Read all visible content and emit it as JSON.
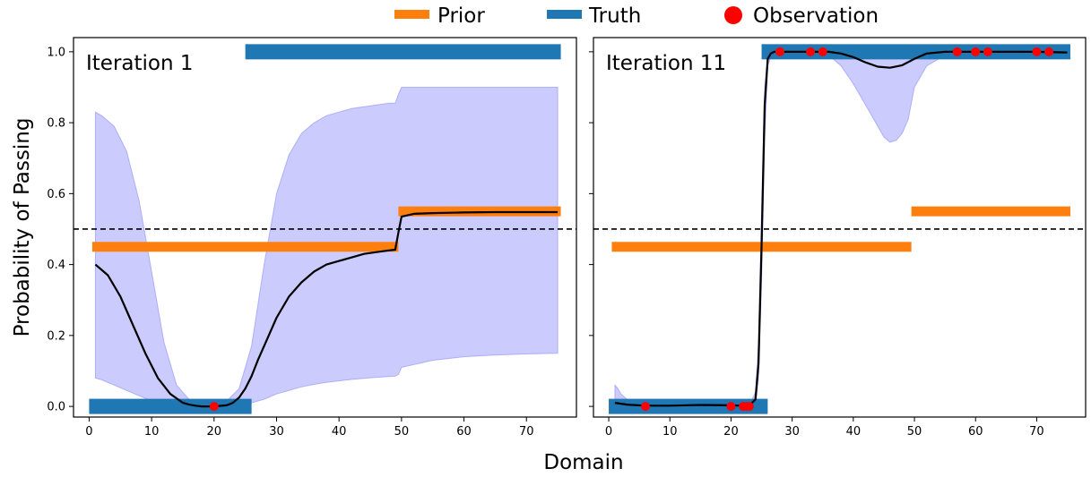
{
  "chart_data": {
    "type": "line",
    "ylabel": "Probability of Passing",
    "xlabel": "Domain",
    "xlim": [
      -2.5,
      78
    ],
    "ylim": [
      -0.03,
      1.04
    ],
    "xticks": [
      0,
      10,
      20,
      30,
      40,
      50,
      60,
      70
    ],
    "yticks": [
      0.0,
      0.2,
      0.4,
      0.6,
      0.8,
      1.0
    ],
    "threshold": 0.5,
    "legend": {
      "position": "top-center",
      "entries": [
        {
          "label": "Prior",
          "color": "#ff7f0e",
          "marker": "bar"
        },
        {
          "label": "Truth",
          "color": "#1f77b4",
          "marker": "bar"
        },
        {
          "label": "Observation",
          "color": "#ff0000",
          "marker": "dot"
        }
      ]
    },
    "panels": [
      {
        "title": "Iteration 1",
        "prior": [
          {
            "x0": 0.5,
            "x1": 49.5,
            "y": 0.45
          },
          {
            "x0": 49.5,
            "x1": 75.5,
            "y": 0.55
          }
        ],
        "truth": [
          {
            "x0": 0,
            "x1": 26,
            "y": 0.0
          },
          {
            "x0": 25,
            "x1": 75.5,
            "y": 1.0
          }
        ],
        "observations": [
          {
            "x": 20,
            "y": 0.0
          }
        ],
        "mean": {
          "x": [
            1,
            3,
            5,
            7,
            9,
            11,
            13,
            15,
            16,
            17,
            18,
            20,
            22,
            23,
            24,
            25,
            26,
            27,
            28,
            30,
            32,
            34,
            36,
            38,
            40,
            42,
            44,
            46,
            48,
            49,
            49.5,
            50,
            52,
            55,
            60,
            65,
            70,
            75
          ],
          "y": [
            0.4,
            0.37,
            0.31,
            0.23,
            0.15,
            0.08,
            0.035,
            0.01,
            0.005,
            0.002,
            0.0,
            0.0,
            0.003,
            0.01,
            0.025,
            0.05,
            0.085,
            0.13,
            0.17,
            0.25,
            0.31,
            0.35,
            0.38,
            0.4,
            0.41,
            0.42,
            0.43,
            0.435,
            0.44,
            0.442,
            0.49,
            0.535,
            0.543,
            0.545,
            0.547,
            0.548,
            0.548,
            0.548
          ]
        },
        "band": {
          "x": [
            1,
            2,
            4,
            6,
            8,
            10,
            12,
            14,
            16,
            18,
            20,
            22,
            24,
            26,
            28,
            30,
            32,
            34,
            36,
            38,
            40,
            42,
            44,
            46,
            48,
            49,
            49.5,
            50,
            55,
            60,
            65,
            70,
            75
          ],
          "upper": [
            0.83,
            0.82,
            0.79,
            0.72,
            0.58,
            0.38,
            0.18,
            0.06,
            0.02,
            0.01,
            0.01,
            0.015,
            0.05,
            0.17,
            0.4,
            0.6,
            0.71,
            0.77,
            0.8,
            0.82,
            0.83,
            0.84,
            0.845,
            0.85,
            0.855,
            0.855,
            0.88,
            0.9,
            0.9,
            0.9,
            0.9,
            0.9,
            0.9
          ],
          "lower": [
            0.08,
            0.075,
            0.06,
            0.045,
            0.03,
            0.015,
            0.005,
            0.0,
            0.0,
            0.0,
            0.0,
            0.0,
            0.003,
            0.01,
            0.02,
            0.035,
            0.045,
            0.055,
            0.062,
            0.068,
            0.072,
            0.076,
            0.079,
            0.082,
            0.084,
            0.085,
            0.09,
            0.11,
            0.13,
            0.14,
            0.145,
            0.148,
            0.15
          ]
        }
      },
      {
        "title": "Iteration 11",
        "prior": [
          {
            "x0": 0.5,
            "x1": 49.5,
            "y": 0.45
          },
          {
            "x0": 49.5,
            "x1": 75.5,
            "y": 0.55
          }
        ],
        "truth": [
          {
            "x0": 0,
            "x1": 26,
            "y": 0.0
          },
          {
            "x0": 25,
            "x1": 75.5,
            "y": 1.0
          }
        ],
        "observations": [
          {
            "x": 6,
            "y": 0.0
          },
          {
            "x": 20,
            "y": 0.0
          },
          {
            "x": 22,
            "y": 0.0
          },
          {
            "x": 22.5,
            "y": 0.0
          },
          {
            "x": 23,
            "y": 0.0
          },
          {
            "x": 28,
            "y": 1.0
          },
          {
            "x": 33,
            "y": 1.0
          },
          {
            "x": 35,
            "y": 1.0
          },
          {
            "x": 57,
            "y": 1.0
          },
          {
            "x": 60,
            "y": 1.0
          },
          {
            "x": 62,
            "y": 1.0
          },
          {
            "x": 70,
            "y": 1.0
          },
          {
            "x": 72,
            "y": 1.0
          }
        ],
        "mean": {
          "x": [
            1,
            3,
            6,
            10,
            15,
            20,
            22,
            23,
            24,
            24.5,
            25,
            25.5,
            26,
            26.5,
            27,
            28,
            30,
            33,
            36,
            38,
            40,
            42,
            44,
            46,
            48,
            50,
            52,
            55,
            57,
            60,
            65,
            70,
            75
          ],
          "y": [
            0.01,
            0.005,
            0.002,
            0.002,
            0.004,
            0.003,
            0.002,
            0.002,
            0.02,
            0.12,
            0.45,
            0.85,
            0.98,
            0.995,
            1.0,
            1.0,
            1.0,
            1.0,
            1.0,
            0.995,
            0.985,
            0.97,
            0.958,
            0.955,
            0.962,
            0.98,
            0.995,
            1.0,
            1.0,
            1.0,
            1.0,
            1.0,
            0.998
          ]
        },
        "band": {
          "x": [
            1,
            1.5,
            2,
            3,
            4,
            6,
            10,
            15,
            20,
            22,
            23,
            24,
            24.5,
            25,
            25.5,
            26,
            26.5,
            27,
            28,
            30,
            33,
            36,
            38,
            40,
            42,
            44,
            45,
            46,
            47,
            48,
            49,
            50,
            52,
            55,
            60,
            65,
            70,
            75
          ],
          "upper": [
            0.06,
            0.05,
            0.035,
            0.02,
            0.01,
            0.003,
            0.004,
            0.006,
            0.005,
            0.004,
            0.004,
            0.04,
            0.18,
            0.55,
            0.9,
            0.99,
            1.0,
            1.0,
            1.0,
            1.0,
            1.0,
            1.0,
            1.0,
            1.0,
            1.0,
            1.0,
            1.0,
            1.0,
            1.0,
            1.0,
            1.0,
            1.0,
            1.0,
            1.0,
            1.0,
            1.0,
            1.0,
            1.0
          ],
          "lower": [
            0.0,
            0.0,
            0.0,
            0.0,
            0.0,
            0.0,
            0.0,
            0.0,
            0.0,
            0.0,
            0.0,
            0.0,
            0.08,
            0.35,
            0.75,
            0.96,
            0.985,
            0.995,
            1.0,
            1.0,
            1.0,
            0.99,
            0.96,
            0.91,
            0.85,
            0.79,
            0.76,
            0.745,
            0.75,
            0.77,
            0.81,
            0.9,
            0.96,
            0.99,
            1.0,
            1.0,
            1.0,
            0.995
          ]
        }
      }
    ]
  }
}
